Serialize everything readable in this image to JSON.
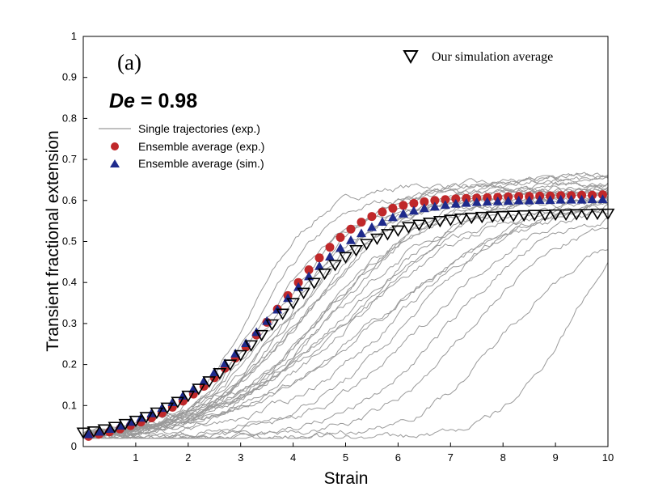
{
  "chart_data": {
    "type": "line",
    "panel_label": "(a)",
    "annotation": {
      "symbol": "De",
      "text": " = 0.98"
    },
    "xlabel": "Strain",
    "ylabel": "Transient fractional extension",
    "xlim": [
      0,
      10
    ],
    "ylim": [
      0,
      1
    ],
    "x_ticks": [
      1,
      2,
      3,
      4,
      5,
      6,
      7,
      8,
      9,
      10
    ],
    "y_ticks": [
      0,
      0.1,
      0.2,
      0.3,
      0.4,
      0.5,
      0.6,
      0.7,
      0.8,
      0.9,
      1
    ],
    "x_tick_labels": [
      "1",
      "2",
      "3",
      "4",
      "5",
      "6",
      "7",
      "8",
      "9",
      "10"
    ],
    "y_tick_labels": [
      "0",
      "0.1",
      "0.2",
      "0.3",
      "0.4",
      "0.5",
      "0.6",
      "0.7",
      "0.8",
      "0.9",
      "1"
    ],
    "legend": {
      "single": "Single trajectories (exp.)",
      "exp_avg": "Ensemble average (exp.)",
      "sim_avg": "Ensemble average (sim.)",
      "our_sim": "Our simulation average"
    },
    "single_trajectories": [
      {
        "x0": 3.2,
        "k": 1.5,
        "plateau": 0.64
      },
      {
        "x0": 3.4,
        "k": 1.4,
        "plateau": 0.62
      },
      {
        "x0": 3.5,
        "k": 1.3,
        "plateau": 0.6
      },
      {
        "x0": 3.7,
        "k": 1.2,
        "plateau": 0.63
      },
      {
        "x0": 3.8,
        "k": 1.3,
        "plateau": 0.59
      },
      {
        "x0": 3.9,
        "k": 1.1,
        "plateau": 0.65
      },
      {
        "x0": 4.0,
        "k": 1.2,
        "plateau": 0.61
      },
      {
        "x0": 4.1,
        "k": 1.0,
        "plateau": 0.66
      },
      {
        "x0": 4.2,
        "k": 1.1,
        "plateau": 0.62
      },
      {
        "x0": 4.3,
        "k": 1.0,
        "plateau": 0.64
      },
      {
        "x0": 4.4,
        "k": 0.9,
        "plateau": 0.67
      },
      {
        "x0": 4.5,
        "k": 1.0,
        "plateau": 0.6
      },
      {
        "x0": 4.6,
        "k": 0.9,
        "plateau": 0.63
      },
      {
        "x0": 4.7,
        "k": 0.9,
        "plateau": 0.65
      },
      {
        "x0": 4.8,
        "k": 0.8,
        "plateau": 0.62
      },
      {
        "x0": 4.9,
        "k": 0.9,
        "plateau": 0.66
      },
      {
        "x0": 5.0,
        "k": 0.8,
        "plateau": 0.6
      },
      {
        "x0": 5.1,
        "k": 0.8,
        "plateau": 0.64
      },
      {
        "x0": 5.2,
        "k": 0.7,
        "plateau": 0.62
      },
      {
        "x0": 5.4,
        "k": 0.8,
        "plateau": 0.65
      },
      {
        "x0": 5.6,
        "k": 0.7,
        "plateau": 0.6
      },
      {
        "x0": 5.8,
        "k": 0.7,
        "plateau": 0.63
      },
      {
        "x0": 6.0,
        "k": 0.8,
        "plateau": 0.61
      },
      {
        "x0": 6.3,
        "k": 0.9,
        "plateau": 0.62
      },
      {
        "x0": 6.6,
        "k": 0.9,
        "plateau": 0.6
      },
      {
        "x0": 7.0,
        "k": 1.0,
        "plateau": 0.58
      },
      {
        "x0": 7.4,
        "k": 1.1,
        "plateau": 0.56
      },
      {
        "x0": 8.0,
        "k": 1.2,
        "plateau": 0.52
      },
      {
        "x0": 9.3,
        "k": 1.5,
        "plateau": 0.6
      }
    ],
    "series": [
      {
        "name": "Ensemble average (exp.)",
        "color": "#c0282a",
        "marker": "circle",
        "x": [
          0.1,
          0.3,
          0.5,
          0.7,
          0.9,
          1.1,
          1.3,
          1.5,
          1.7,
          1.9,
          2.1,
          2.3,
          2.5,
          2.7,
          2.9,
          3.1,
          3.3,
          3.5,
          3.7,
          3.9,
          4.1,
          4.3,
          4.5,
          4.7,
          4.9,
          5.1,
          5.3,
          5.5,
          5.7,
          5.9,
          6.1,
          6.3,
          6.5,
          6.7,
          6.9,
          7.1,
          7.3,
          7.5,
          7.7,
          7.9,
          8.1,
          8.3,
          8.5,
          8.7,
          8.9,
          9.1,
          9.3,
          9.5,
          9.7,
          9.9
        ],
        "y": [
          0.025,
          0.03,
          0.036,
          0.043,
          0.051,
          0.06,
          0.07,
          0.082,
          0.096,
          0.111,
          0.128,
          0.147,
          0.168,
          0.191,
          0.216,
          0.243,
          0.272,
          0.303,
          0.335,
          0.368,
          0.4,
          0.431,
          0.46,
          0.486,
          0.51,
          0.53,
          0.547,
          0.561,
          0.572,
          0.581,
          0.588,
          0.593,
          0.597,
          0.6,
          0.602,
          0.604,
          0.605,
          0.606,
          0.607,
          0.608,
          0.609,
          0.61,
          0.61,
          0.611,
          0.611,
          0.612,
          0.612,
          0.613,
          0.613,
          0.614
        ]
      },
      {
        "name": "Ensemble average (sim.)",
        "color": "#1e2a8c",
        "marker": "triangle",
        "x": [
          0.1,
          0.3,
          0.5,
          0.7,
          0.9,
          1.1,
          1.3,
          1.5,
          1.7,
          1.9,
          2.1,
          2.3,
          2.5,
          2.7,
          2.9,
          3.1,
          3.3,
          3.5,
          3.7,
          3.9,
          4.1,
          4.3,
          4.5,
          4.7,
          4.9,
          5.1,
          5.3,
          5.5,
          5.7,
          5.9,
          6.1,
          6.3,
          6.5,
          6.7,
          6.9,
          7.1,
          7.3,
          7.5,
          7.7,
          7.9,
          8.1,
          8.3,
          8.5,
          8.7,
          8.9,
          9.1,
          9.3,
          9.5,
          9.7,
          9.9
        ],
        "y": [
          0.03,
          0.036,
          0.043,
          0.051,
          0.06,
          0.07,
          0.081,
          0.094,
          0.108,
          0.124,
          0.141,
          0.16,
          0.181,
          0.203,
          0.227,
          0.252,
          0.279,
          0.306,
          0.334,
          0.362,
          0.389,
          0.415,
          0.44,
          0.463,
          0.484,
          0.503,
          0.52,
          0.535,
          0.548,
          0.559,
          0.568,
          0.575,
          0.581,
          0.585,
          0.589,
          0.592,
          0.594,
          0.596,
          0.597,
          0.598,
          0.599,
          0.6,
          0.6,
          0.601,
          0.601,
          0.602,
          0.602,
          0.602,
          0.603,
          0.603
        ]
      },
      {
        "name": "Our simulation average",
        "color": "#000000",
        "marker": "triangle-down-open",
        "x": [
          0.0,
          0.2,
          0.4,
          0.6,
          0.8,
          1.0,
          1.2,
          1.4,
          1.6,
          1.8,
          2.0,
          2.2,
          2.4,
          2.6,
          2.8,
          3.0,
          3.2,
          3.4,
          3.6,
          3.8,
          4.0,
          4.2,
          4.4,
          4.6,
          4.8,
          5.0,
          5.2,
          5.4,
          5.6,
          5.8,
          6.0,
          6.2,
          6.4,
          6.6,
          6.8,
          7.0,
          7.2,
          7.4,
          7.6,
          7.8,
          8.0,
          8.2,
          8.4,
          8.6,
          8.8,
          9.0,
          9.2,
          9.4,
          9.6,
          9.8,
          10.0
        ],
        "y": [
          0.035,
          0.038,
          0.043,
          0.049,
          0.056,
          0.064,
          0.073,
          0.084,
          0.096,
          0.11,
          0.125,
          0.142,
          0.16,
          0.18,
          0.201,
          0.224,
          0.248,
          0.273,
          0.299,
          0.325,
          0.351,
          0.376,
          0.4,
          0.423,
          0.444,
          0.463,
          0.48,
          0.495,
          0.508,
          0.519,
          0.528,
          0.536,
          0.542,
          0.547,
          0.551,
          0.554,
          0.557,
          0.559,
          0.561,
          0.562,
          0.563,
          0.564,
          0.565,
          0.566,
          0.566,
          0.567,
          0.567,
          0.568,
          0.568,
          0.569,
          0.569
        ]
      }
    ]
  }
}
